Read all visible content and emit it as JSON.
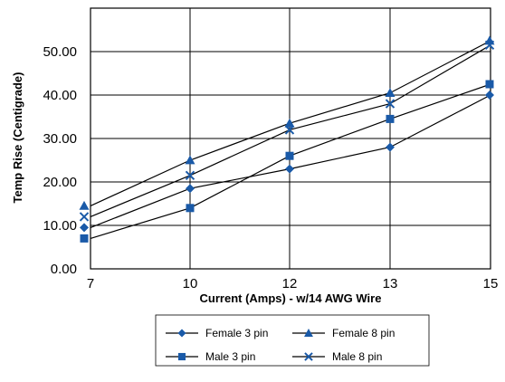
{
  "chart_data": {
    "type": "line",
    "title": "",
    "xlabel": "Current (Amps) - w/14 AWG Wire",
    "ylabel": "Temp Rise (Centigrade)",
    "categories": [
      "7",
      "10",
      "12",
      "13",
      "15"
    ],
    "y_ticks": [
      "0.00",
      "10.00",
      "20.00",
      "30.00",
      "40.00",
      "50.00"
    ],
    "ylim": [
      0,
      60
    ],
    "grid": true,
    "legend_position": "bottom",
    "series": [
      {
        "name": "Female 3 pin",
        "marker": "diamond",
        "values": [
          9.5,
          18.5,
          23,
          28,
          40
        ]
      },
      {
        "name": "Female 8 pin",
        "marker": "triangle",
        "values": [
          14.5,
          25,
          33.5,
          40.5,
          52.5
        ]
      },
      {
        "name": "Male 3 pin",
        "marker": "square",
        "values": [
          7,
          14,
          26,
          34.5,
          42.5
        ]
      },
      {
        "name": "Male 8 pin",
        "marker": "x",
        "values": [
          12,
          21.5,
          32,
          38,
          51.5
        ]
      }
    ],
    "colors": {
      "marker": "#1a5aa8",
      "line": "#000000",
      "grid": "#000000"
    }
  }
}
